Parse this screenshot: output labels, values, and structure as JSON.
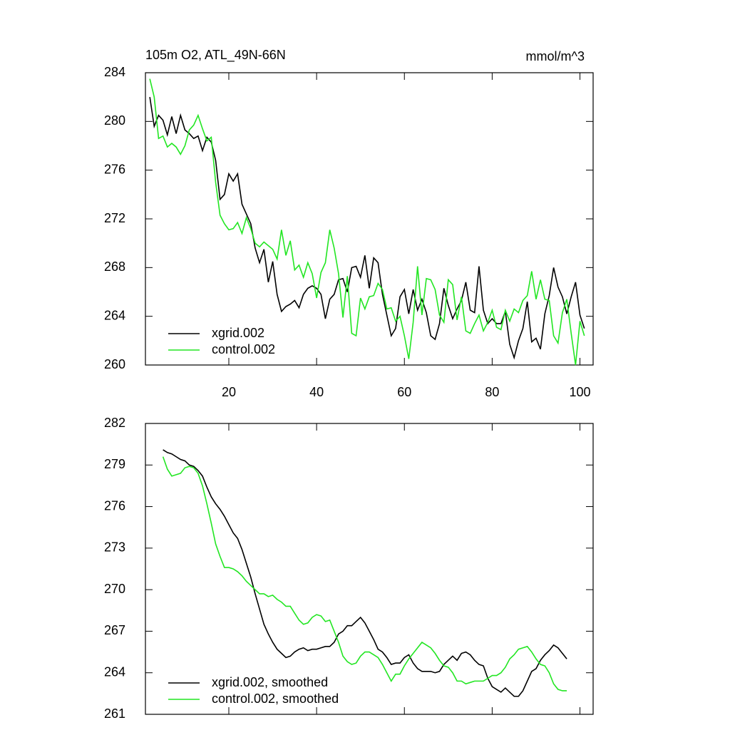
{
  "chart_data": [
    {
      "type": "line",
      "title": "105m O2, ATL_49N-66N",
      "units": "mmol/m^3",
      "x": [
        2,
        3,
        4,
        5,
        6,
        7,
        8,
        9,
        10,
        11,
        12,
        13,
        14,
        15,
        16,
        17,
        18,
        19,
        20,
        21,
        22,
        23,
        24,
        25,
        26,
        27,
        28,
        29,
        30,
        31,
        32,
        33,
        34,
        35,
        36,
        37,
        38,
        39,
        40,
        41,
        42,
        43,
        44,
        45,
        46,
        47,
        48,
        49,
        50,
        51,
        52,
        53,
        54,
        55,
        56,
        57,
        58,
        59,
        60,
        61,
        62,
        63,
        64,
        65,
        66,
        67,
        68,
        69,
        70,
        71,
        72,
        73,
        74,
        75,
        76,
        77,
        78,
        79,
        80,
        81,
        82,
        83,
        84,
        85,
        86,
        87,
        88,
        89,
        90,
        91,
        92,
        93,
        94,
        95,
        96,
        97,
        98,
        99,
        100,
        101
      ],
      "series": [
        {
          "name": "xgrid.002",
          "color": "#000000",
          "values": [
            282,
            279.6,
            280.5,
            280.1,
            278.9,
            280.4,
            279,
            280.5,
            279.3,
            279,
            278.6,
            278.8,
            277.6,
            278.7,
            278.3,
            276.8,
            273.6,
            274,
            275.7,
            275.1,
            275.7,
            273.2,
            272.4,
            271.6,
            269.6,
            268.4,
            269.5,
            266.8,
            268.5,
            265.8,
            264.4,
            264.8,
            265,
            265.3,
            264.7,
            265.8,
            266.3,
            266.5,
            266.3,
            265.8,
            263.8,
            265.4,
            265.8,
            267,
            267.1,
            266,
            268,
            268.1,
            267.2,
            269,
            266.3,
            268.8,
            268.4,
            265.8,
            264.1,
            262.4,
            263,
            265.6,
            266.2,
            264.2,
            266.2,
            264.5,
            265.4,
            264.3,
            262.4,
            262.1,
            263.4,
            266.3,
            264.9,
            263.8,
            264.6,
            265.3,
            266.8,
            264.5,
            264.3,
            268.1,
            264.5,
            263.4,
            263.8,
            263.4,
            263.4,
            264.4,
            261.7,
            260.6,
            262,
            263,
            265.2,
            261.9,
            262.2,
            261.3,
            264.2,
            265.7,
            268,
            266.4,
            265.6,
            264.2,
            265.6,
            266.8,
            264.1,
            263
          ]
        },
        {
          "name": "control.002",
          "color": "#22e622",
          "values": [
            283.5,
            282,
            278.6,
            278.8,
            277.9,
            278.2,
            277.9,
            277.3,
            278,
            279.3,
            279.7,
            280.5,
            279.4,
            278.4,
            278.7,
            275,
            272.3,
            271.6,
            271.1,
            271.2,
            271.7,
            270.8,
            272.1,
            271.2,
            270,
            269.7,
            270.1,
            269.8,
            269.5,
            268.7,
            271.1,
            269,
            270.2,
            267.8,
            268.2,
            267.2,
            268.4,
            267.5,
            265.5,
            267.6,
            268.4,
            271.1,
            269.6,
            267.5,
            263.9,
            267.3,
            262.6,
            262.4,
            265.5,
            264.6,
            265.6,
            265.7,
            266.7,
            266.2,
            264.6,
            264.7,
            263.6,
            264,
            262.4,
            260.5,
            263.5,
            268.1,
            264.1,
            267.1,
            267,
            266.2,
            264.1,
            263.5,
            267,
            266.6,
            263.7,
            265.6,
            262.8,
            262.6,
            263.4,
            264.1,
            262.8,
            263.5,
            264.5,
            263.1,
            262.9,
            264.5,
            263.6,
            264.6,
            264.3,
            265.3,
            265.7,
            267.7,
            265.4,
            267,
            265.4,
            265.3,
            262.4,
            261.8,
            264.3,
            265.4,
            262.6,
            260,
            263.6,
            262.4
          ]
        }
      ],
      "xlim": [
        1,
        103
      ],
      "xticks": [
        20,
        40,
        60,
        80,
        100
      ],
      "show_xtick_labels": true,
      "ylim": [
        260,
        284
      ],
      "yticks": [
        260,
        264,
        268,
        272,
        276,
        280,
        284
      ]
    },
    {
      "type": "line",
      "x": [
        5,
        6,
        7,
        8,
        9,
        10,
        11,
        12,
        13,
        14,
        15,
        16,
        17,
        18,
        19,
        20,
        21,
        22,
        23,
        24,
        25,
        26,
        27,
        28,
        29,
        30,
        31,
        32,
        33,
        34,
        35,
        36,
        37,
        38,
        39,
        40,
        41,
        42,
        43,
        44,
        45,
        46,
        47,
        48,
        49,
        50,
        51,
        52,
        53,
        54,
        55,
        56,
        57,
        58,
        59,
        60,
        61,
        62,
        63,
        64,
        65,
        66,
        67,
        68,
        69,
        70,
        71,
        72,
        73,
        74,
        75,
        76,
        77,
        78,
        79,
        80,
        81,
        82,
        83,
        84,
        85,
        86,
        87,
        88,
        89,
        90,
        91,
        92,
        93,
        94,
        95,
        96,
        97
      ],
      "series": [
        {
          "name": "xgrid.002, smoothed",
          "color": "#000000",
          "values": [
            280.1,
            279.9,
            279.8,
            279.6,
            279.4,
            279.3,
            279,
            278.9,
            278.6,
            278.2,
            277.4,
            276.7,
            276.2,
            275.8,
            275.3,
            274.7,
            274.1,
            273.7,
            272.9,
            271.9,
            270.9,
            269.7,
            268.6,
            267.5,
            266.8,
            266.2,
            265.7,
            265.4,
            265.1,
            265.2,
            265.5,
            265.7,
            265.8,
            265.6,
            265.7,
            265.7,
            265.8,
            265.9,
            265.9,
            266.2,
            266.8,
            267,
            267.4,
            267.4,
            267.7,
            268,
            267.6,
            267,
            266.4,
            265.7,
            265.5,
            265.1,
            264.6,
            264.7,
            264.7,
            265.1,
            265.3,
            264.7,
            264.3,
            264.1,
            264.1,
            264.1,
            264,
            264.1,
            264.6,
            264.9,
            265.2,
            264.9,
            265.4,
            265.5,
            265.3,
            264.9,
            264.6,
            264.5,
            263.6,
            263,
            262.8,
            262.6,
            262.9,
            262.6,
            262.3,
            262.3,
            262.7,
            263.4,
            264.1,
            264.3,
            264.9,
            265.3,
            265.6,
            266,
            265.8,
            265.4,
            265
          ]
        },
        {
          "name": "control.002, smoothed",
          "color": "#22e622",
          "values": [
            279.6,
            278.7,
            278.2,
            278.3,
            278.4,
            278.8,
            278.9,
            278.8,
            278.4,
            277.5,
            276.2,
            274.8,
            273.3,
            272.4,
            271.6,
            271.6,
            271.5,
            271.3,
            271,
            270.6,
            270.3,
            270,
            269.7,
            269.7,
            269.5,
            269.6,
            269.3,
            269.1,
            268.8,
            268.8,
            268.3,
            267.8,
            267.5,
            267.6,
            268,
            268.2,
            268.1,
            267.7,
            267.8,
            267,
            266.2,
            265.2,
            264.8,
            264.6,
            264.7,
            265.2,
            265.5,
            265.5,
            265.3,
            265.1,
            264.6,
            264,
            263.4,
            263.9,
            263.9,
            264.5,
            265,
            265.4,
            265.8,
            266.2,
            266,
            265.8,
            265.4,
            264.9,
            264.5,
            264.4,
            264,
            263.4,
            263.4,
            263.2,
            263.3,
            263.4,
            263.4,
            263.4,
            263.6,
            263.8,
            263.8,
            264,
            264.4,
            265,
            265.3,
            265.7,
            265.8,
            265.9,
            265.5,
            265,
            264.6,
            264.5,
            264,
            263.2,
            262.8,
            262.7,
            262.7
          ]
        }
      ],
      "xlim": [
        1,
        103
      ],
      "xticks": [
        20,
        40,
        60,
        80,
        100
      ],
      "show_xtick_labels": false,
      "ylim": [
        261,
        282
      ],
      "yticks": [
        261,
        264,
        267,
        270,
        273,
        276,
        279,
        282
      ]
    }
  ]
}
